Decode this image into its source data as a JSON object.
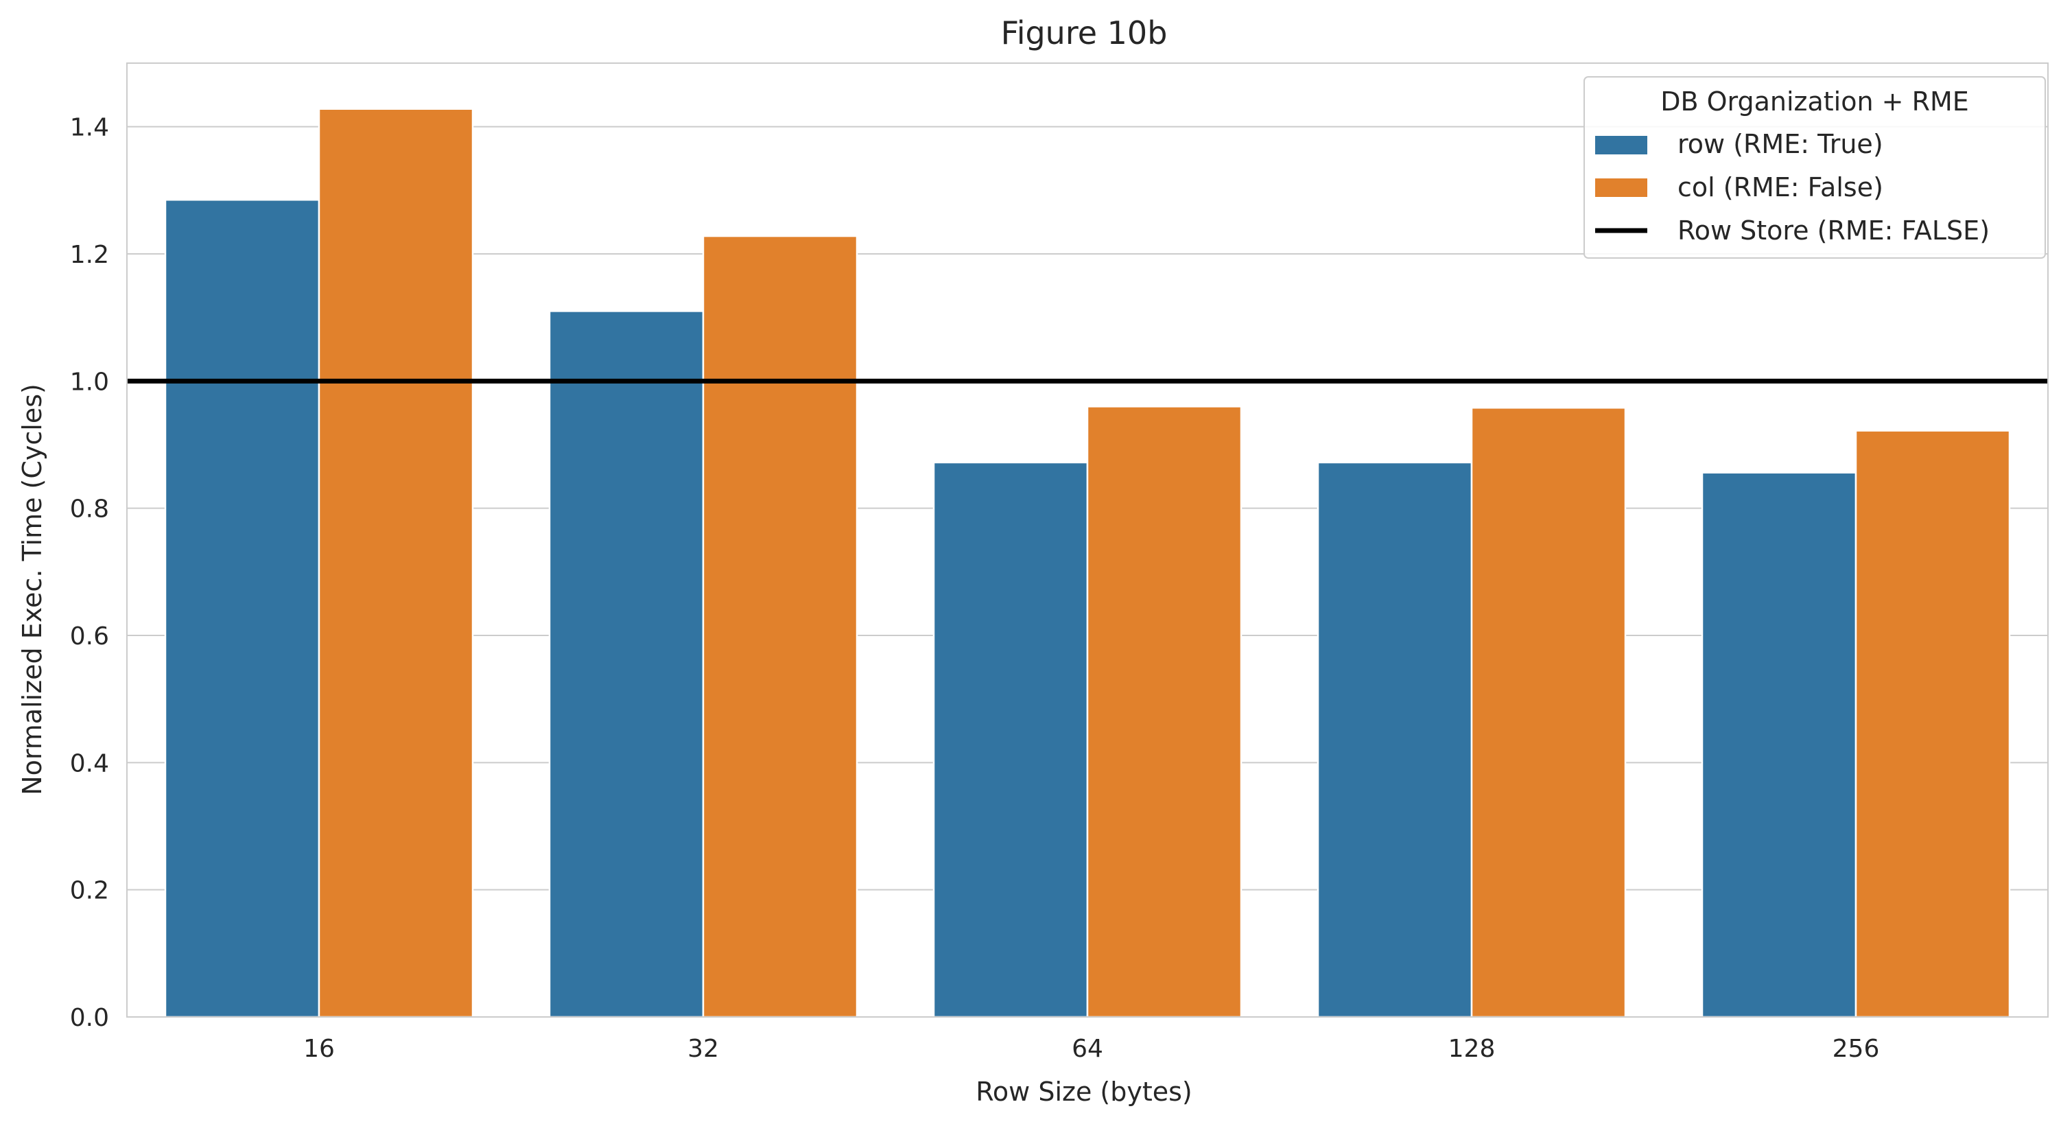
{
  "chart_data": {
    "type": "bar",
    "title": "Figure 10b",
    "xlabel": "Row Size (bytes)",
    "ylabel": "Normalized Exec. Time (Cycles)",
    "categories": [
      "16",
      "32",
      "64",
      "128",
      "256"
    ],
    "series": [
      {
        "name": "row (RME: True)",
        "color": "#3274a1",
        "values": [
          1.285,
          1.11,
          0.872,
          0.872,
          0.856
        ]
      },
      {
        "name": "col (RME: False)",
        "color": "#e1812c",
        "values": [
          1.428,
          1.228,
          0.96,
          0.958,
          0.922
        ]
      }
    ],
    "reference_line": {
      "name": "Row Store (RME: FALSE)",
      "value": 1.0,
      "color": "#000000"
    },
    "ylim": [
      0,
      1.5
    ],
    "yticks": [
      "0.0",
      "0.2",
      "0.4",
      "0.6",
      "0.8",
      "1.0",
      "1.2",
      "1.4"
    ],
    "grid": true,
    "legend": {
      "title": "DB Organization + RME",
      "placement": "top-right"
    }
  }
}
